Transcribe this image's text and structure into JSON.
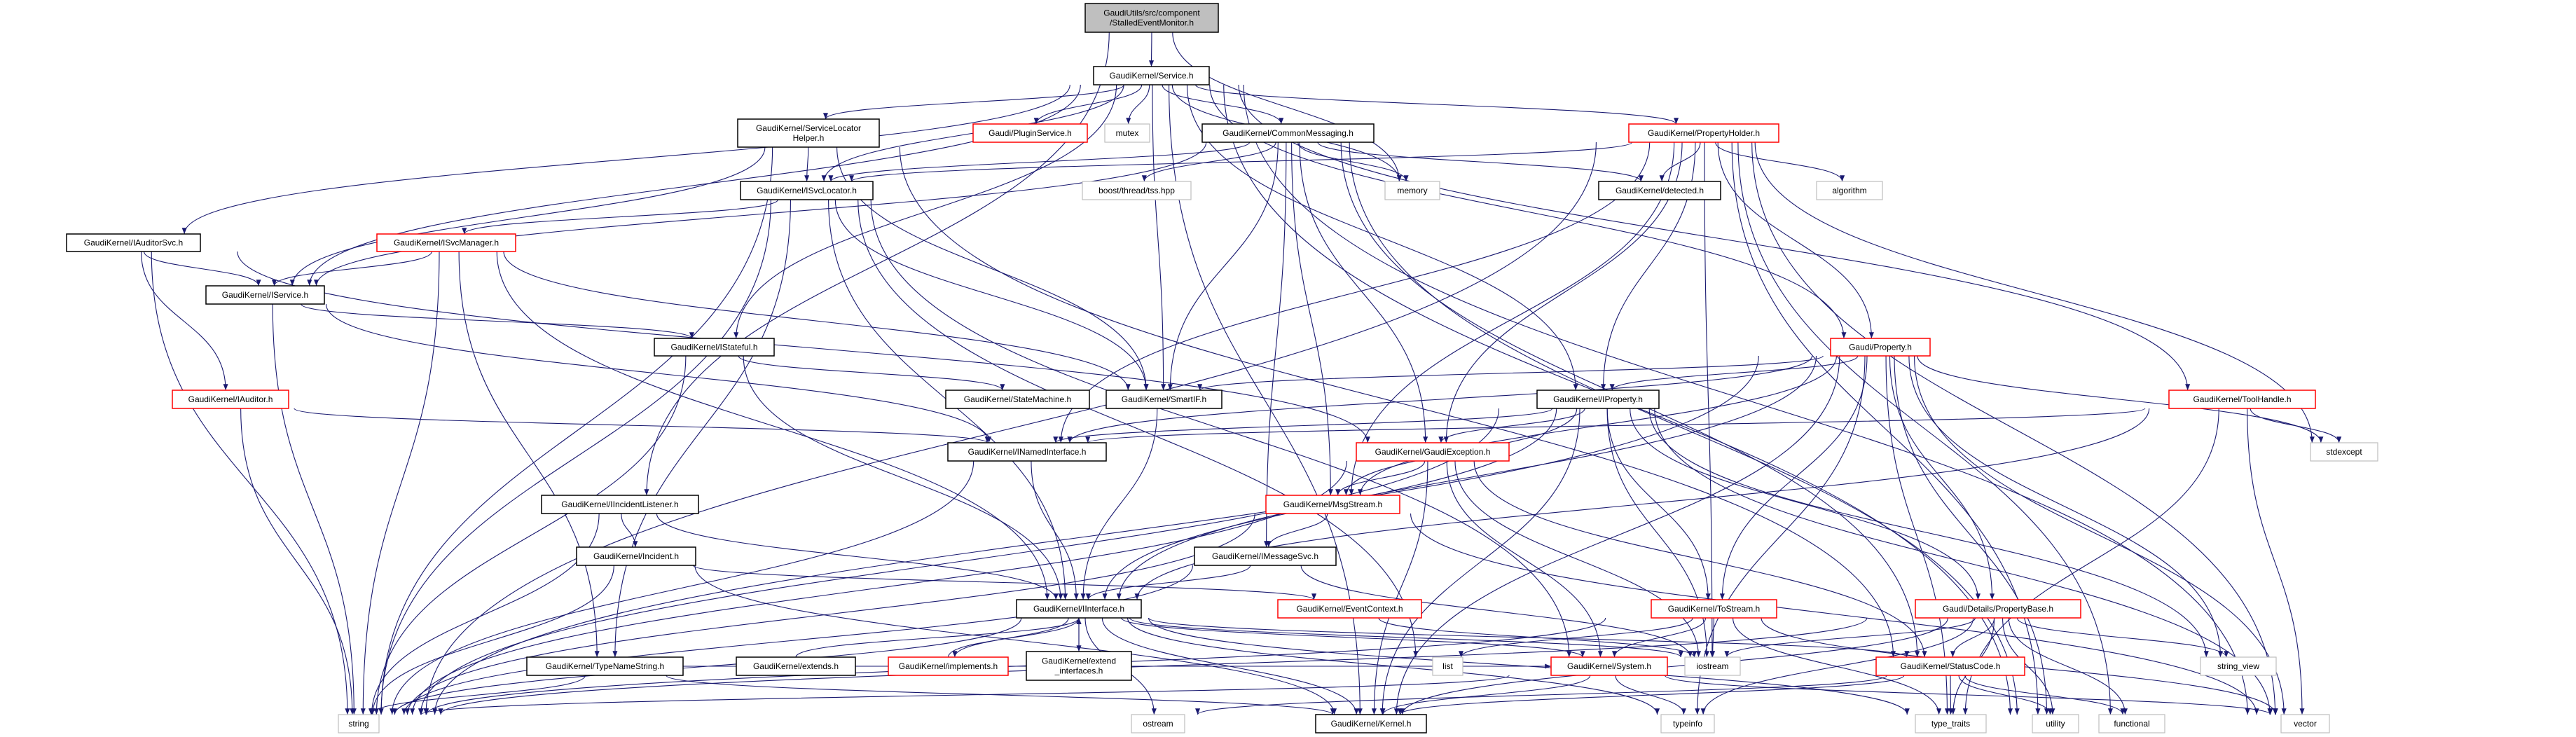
{
  "colors": {
    "edge": "#191970",
    "documented_border": "#000000",
    "truncated_border": "#ff0000",
    "system_border": "#bfbfbf",
    "root_fill": "#bfbfbf"
  },
  "nodes": {
    "root": {
      "lines": [
        "GaudiUtils/src/component",
        "/StalledEventMonitor.h"
      ],
      "kind": "root"
    },
    "service": {
      "lines": [
        "GaudiKernel/Service.h"
      ],
      "kind": "documented"
    },
    "pluginservice": {
      "lines": [
        "Gaudi/PluginService.h"
      ],
      "kind": "truncated"
    },
    "mutex": {
      "lines": [
        "mutex"
      ],
      "kind": "system"
    },
    "commonmessaging": {
      "lines": [
        "GaudiKernel/CommonMessaging.h"
      ],
      "kind": "documented"
    },
    "propertyholder": {
      "lines": [
        "GaudiKernel/PropertyHolder.h"
      ],
      "kind": "truncated"
    },
    "servicelocatorhelper": {
      "lines": [
        "GaudiKernel/ServiceLocator",
        "Helper.h"
      ],
      "kind": "documented"
    },
    "isvclocator": {
      "lines": [
        "GaudiKernel/ISvcLocator.h"
      ],
      "kind": "documented"
    },
    "tss": {
      "lines": [
        "boost/thread/tss.hpp"
      ],
      "kind": "system"
    },
    "memory": {
      "lines": [
        "memory"
      ],
      "kind": "system"
    },
    "detected": {
      "lines": [
        "GaudiKernel/detected.h"
      ],
      "kind": "documented"
    },
    "algorithm": {
      "lines": [
        "algorithm"
      ],
      "kind": "system"
    },
    "iauditorsvc": {
      "lines": [
        "GaudiKernel/IAuditorSvc.h"
      ],
      "kind": "documented"
    },
    "isvcmanager": {
      "lines": [
        "GaudiKernel/ISvcManager.h"
      ],
      "kind": "truncated"
    },
    "iservice": {
      "lines": [
        "GaudiKernel/IService.h"
      ],
      "kind": "documented"
    },
    "istateful": {
      "lines": [
        "GaudiKernel/IStateful.h"
      ],
      "kind": "documented"
    },
    "property": {
      "lines": [
        "Gaudi/Property.h"
      ],
      "kind": "truncated"
    },
    "iauditor": {
      "lines": [
        "GaudiKernel/IAuditor.h"
      ],
      "kind": "truncated"
    },
    "statemachine": {
      "lines": [
        "GaudiKernel/StateMachine.h"
      ],
      "kind": "documented"
    },
    "smartif": {
      "lines": [
        "GaudiKernel/SmartIF.h"
      ],
      "kind": "documented"
    },
    "iproperty": {
      "lines": [
        "GaudiKernel/IProperty.h"
      ],
      "kind": "documented"
    },
    "toolhandle": {
      "lines": [
        "GaudiKernel/ToolHandle.h"
      ],
      "kind": "truncated"
    },
    "inamedinterface": {
      "lines": [
        "GaudiKernel/INamedInterface.h"
      ],
      "kind": "documented"
    },
    "gaudiexception": {
      "lines": [
        "GaudiKernel/GaudiException.h"
      ],
      "kind": "truncated"
    },
    "stdexcept": {
      "lines": [
        "stdexcept"
      ],
      "kind": "system"
    },
    "iincidentlistener": {
      "lines": [
        "GaudiKernel/IIncidentListener.h"
      ],
      "kind": "documented"
    },
    "msgstream": {
      "lines": [
        "GaudiKernel/MsgStream.h"
      ],
      "kind": "truncated"
    },
    "incident": {
      "lines": [
        "GaudiKernel/Incident.h"
      ],
      "kind": "documented"
    },
    "imessagesvc": {
      "lines": [
        "GaudiKernel/IMessageSvc.h"
      ],
      "kind": "documented"
    },
    "iinterface": {
      "lines": [
        "GaudiKernel/IInterface.h"
      ],
      "kind": "documented"
    },
    "eventcontext": {
      "lines": [
        "GaudiKernel/EventContext.h"
      ],
      "kind": "truncated"
    },
    "tostream": {
      "lines": [
        "GaudiKernel/ToStream.h"
      ],
      "kind": "truncated"
    },
    "propertybase": {
      "lines": [
        "Gaudi/Details/PropertyBase.h"
      ],
      "kind": "truncated"
    },
    "typenamestring": {
      "lines": [
        "GaudiKernel/TypeNameString.h"
      ],
      "kind": "documented"
    },
    "extends": {
      "lines": [
        "GaudiKernel/extends.h"
      ],
      "kind": "documented"
    },
    "implements": {
      "lines": [
        "GaudiKernel/implements.h"
      ],
      "kind": "truncated"
    },
    "extend_interfaces": {
      "lines": [
        "GaudiKernel/extend",
        "_interfaces.h"
      ],
      "kind": "documented"
    },
    "list": {
      "lines": [
        "list"
      ],
      "kind": "system"
    },
    "system": {
      "lines": [
        "GaudiKernel/System.h"
      ],
      "kind": "truncated"
    },
    "iostream": {
      "lines": [
        "iostream"
      ],
      "kind": "system"
    },
    "statuscode": {
      "lines": [
        "GaudiKernel/StatusCode.h"
      ],
      "kind": "truncated"
    },
    "string_view": {
      "lines": [
        "string_view"
      ],
      "kind": "system"
    },
    "string": {
      "lines": [
        "string"
      ],
      "kind": "system"
    },
    "ostream": {
      "lines": [
        "ostream"
      ],
      "kind": "system"
    },
    "kernel": {
      "lines": [
        "GaudiKernel/Kernel.h"
      ],
      "kind": "documented"
    },
    "typeinfo": {
      "lines": [
        "typeinfo"
      ],
      "kind": "system"
    },
    "type_traits": {
      "lines": [
        "type_traits"
      ],
      "kind": "system"
    },
    "utility": {
      "lines": [
        "utility"
      ],
      "kind": "system"
    },
    "functional": {
      "lines": [
        "functional"
      ],
      "kind": "system"
    },
    "vector": {
      "lines": [
        "vector"
      ],
      "kind": "system"
    }
  },
  "edges": [
    [
      "root",
      "service"
    ],
    [
      "root",
      "iincidentlistener"
    ],
    [
      "root",
      "memory"
    ],
    [
      "service",
      "servicelocatorhelper"
    ],
    [
      "service",
      "pluginservice"
    ],
    [
      "service",
      "mutex"
    ],
    [
      "service",
      "commonmessaging"
    ],
    [
      "service",
      "propertyholder"
    ],
    [
      "service",
      "iauditorsvc"
    ],
    [
      "service",
      "iservice"
    ],
    [
      "service",
      "isvclocator"
    ],
    [
      "service",
      "istateful"
    ],
    [
      "service",
      "smartif"
    ],
    [
      "service",
      "iproperty"
    ],
    [
      "service",
      "property"
    ],
    [
      "service",
      "toolhandle"
    ],
    [
      "service",
      "memory"
    ],
    [
      "service",
      "vector"
    ],
    [
      "service",
      "utility"
    ],
    [
      "service",
      "kernel"
    ],
    [
      "servicelocatorhelper",
      "isvclocator"
    ],
    [
      "servicelocatorhelper",
      "iservice"
    ],
    [
      "servicelocatorhelper",
      "smartif"
    ],
    [
      "servicelocatorhelper",
      "string"
    ],
    [
      "servicelocatorhelper",
      "statuscode"
    ],
    [
      "commonmessaging",
      "isvclocator"
    ],
    [
      "commonmessaging",
      "iservice"
    ],
    [
      "commonmessaging",
      "imessagesvc"
    ],
    [
      "commonmessaging",
      "msgstream"
    ],
    [
      "commonmessaging",
      "gaudiexception"
    ],
    [
      "commonmessaging",
      "smartif"
    ],
    [
      "commonmessaging",
      "detected"
    ],
    [
      "commonmessaging",
      "tss"
    ],
    [
      "commonmessaging",
      "memory"
    ],
    [
      "commonmessaging",
      "utility"
    ],
    [
      "commonmessaging",
      "statuscode"
    ],
    [
      "propertyholder",
      "iproperty"
    ],
    [
      "propertyholder",
      "property"
    ],
    [
      "propertyholder",
      "detected"
    ],
    [
      "propertyholder",
      "algorithm"
    ],
    [
      "propertyholder",
      "stdexcept"
    ],
    [
      "propertyholder",
      "utility"
    ],
    [
      "propertyholder",
      "vector"
    ],
    [
      "propertyholder",
      "string"
    ],
    [
      "propertyholder",
      "iostream"
    ],
    [
      "propertyholder",
      "gaudiexception"
    ],
    [
      "propertyholder",
      "msgstream"
    ],
    [
      "propertyholder",
      "inamedinterface"
    ],
    [
      "propertyholder",
      "isvclocator"
    ],
    [
      "propertyholder",
      "functional"
    ],
    [
      "isvclocator",
      "isvcmanager"
    ],
    [
      "isvclocator",
      "iinterface"
    ],
    [
      "isvclocator",
      "smartif"
    ],
    [
      "isvclocator",
      "typenamestring"
    ],
    [
      "isvclocator",
      "system"
    ],
    [
      "isvclocator",
      "list"
    ],
    [
      "isvclocator",
      "string"
    ],
    [
      "isvcmanager",
      "iservice"
    ],
    [
      "isvcmanager",
      "iinterface"
    ],
    [
      "isvcmanager",
      "smartif"
    ],
    [
      "isvcmanager",
      "string"
    ],
    [
      "isvcmanager",
      "typenamestring"
    ],
    [
      "iauditorsvc",
      "iservice"
    ],
    [
      "iauditorsvc",
      "iauditor"
    ],
    [
      "iauditorsvc",
      "string"
    ],
    [
      "iauditorsvc",
      "gaudiexception"
    ],
    [
      "iservice",
      "inamedinterface"
    ],
    [
      "iservice",
      "istateful"
    ],
    [
      "iservice",
      "string"
    ],
    [
      "istateful",
      "iinterface"
    ],
    [
      "istateful",
      "statemachine"
    ],
    [
      "istateful",
      "string"
    ],
    [
      "iauditor",
      "inamedinterface"
    ],
    [
      "iauditor",
      "string"
    ],
    [
      "smartif",
      "iinterface"
    ],
    [
      "inamedinterface",
      "iinterface"
    ],
    [
      "inamedinterface",
      "string"
    ],
    [
      "iproperty",
      "inamedinterface"
    ],
    [
      "iproperty",
      "gaudiexception"
    ],
    [
      "iproperty",
      "msgstream"
    ],
    [
      "iproperty",
      "tostream"
    ],
    [
      "iproperty",
      "propertybase"
    ],
    [
      "iproperty",
      "iinterface"
    ],
    [
      "iproperty",
      "string"
    ],
    [
      "iproperty",
      "string_view"
    ],
    [
      "iproperty",
      "iostream"
    ],
    [
      "iproperty",
      "vector"
    ],
    [
      "iproperty",
      "kernel"
    ],
    [
      "property",
      "smartif"
    ],
    [
      "property",
      "iproperty"
    ],
    [
      "property",
      "propertybase"
    ],
    [
      "property",
      "tostream"
    ],
    [
      "property",
      "string_view"
    ],
    [
      "property",
      "stdexcept"
    ],
    [
      "property",
      "type_traits"
    ],
    [
      "property",
      "utility"
    ],
    [
      "property",
      "vector"
    ],
    [
      "property",
      "kernel"
    ],
    [
      "property",
      "typeinfo"
    ],
    [
      "property",
      "string"
    ],
    [
      "property",
      "iinterface"
    ],
    [
      "property",
      "inamedinterface"
    ],
    [
      "property",
      "msgstream"
    ],
    [
      "toolhandle",
      "stdexcept"
    ],
    [
      "toolhandle",
      "iinterface"
    ],
    [
      "toolhandle",
      "type_traits"
    ],
    [
      "toolhandle",
      "vector"
    ],
    [
      "toolhandle",
      "inamedinterface"
    ],
    [
      "gaudiexception",
      "msgstream"
    ],
    [
      "gaudiexception",
      "statuscode"
    ],
    [
      "gaudiexception",
      "kernel"
    ],
    [
      "gaudiexception",
      "iostream"
    ],
    [
      "gaudiexception",
      "string"
    ],
    [
      "gaudiexception",
      "system"
    ],
    [
      "msgstream",
      "imessagesvc"
    ],
    [
      "msgstream",
      "vector"
    ],
    [
      "msgstream",
      "string"
    ],
    [
      "imessagesvc",
      "iinterface"
    ],
    [
      "imessagesvc",
      "string"
    ],
    [
      "imessagesvc",
      "iostream"
    ],
    [
      "iincidentlistener",
      "iinterface"
    ],
    [
      "iincidentlistener",
      "incident"
    ],
    [
      "iincidentlistener",
      "string"
    ],
    [
      "incident",
      "eventcontext"
    ],
    [
      "incident",
      "string"
    ],
    [
      "incident",
      "kernel"
    ],
    [
      "iinterface",
      "system"
    ],
    [
      "iinterface",
      "kernel"
    ],
    [
      "iinterface",
      "ostream"
    ],
    [
      "iinterface",
      "statuscode"
    ],
    [
      "iinterface",
      "typeinfo"
    ],
    [
      "iinterface",
      "type_traits"
    ],
    [
      "iinterface",
      "string"
    ],
    [
      "iinterface",
      "iostream"
    ],
    [
      "iinterface",
      "extend_interfaces"
    ],
    [
      "iinterface",
      "implements"
    ],
    [
      "extends",
      "iinterface"
    ],
    [
      "implements",
      "iinterface"
    ],
    [
      "extend_interfaces",
      "iinterface"
    ],
    [
      "typenamestring",
      "string"
    ],
    [
      "typenamestring",
      "kernel"
    ],
    [
      "typenamestring",
      "system"
    ],
    [
      "eventcontext",
      "iostream"
    ],
    [
      "tostream",
      "list"
    ],
    [
      "tostream",
      "string"
    ],
    [
      "tostream",
      "iostream"
    ],
    [
      "tostream",
      "type_traits"
    ],
    [
      "tostream",
      "vector"
    ],
    [
      "tostream",
      "system"
    ],
    [
      "propertybase",
      "statuscode"
    ],
    [
      "propertybase",
      "string_view"
    ],
    [
      "propertybase",
      "type_traits"
    ],
    [
      "propertybase",
      "utility"
    ],
    [
      "propertybase",
      "functional"
    ],
    [
      "propertybase",
      "iostream"
    ],
    [
      "propertybase",
      "typeinfo"
    ],
    [
      "propertybase",
      "string"
    ],
    [
      "propertybase",
      "kernel"
    ],
    [
      "system",
      "kernel"
    ],
    [
      "system",
      "typeinfo"
    ],
    [
      "system",
      "string"
    ],
    [
      "system",
      "vector"
    ],
    [
      "statuscode",
      "type_traits"
    ],
    [
      "statuscode",
      "utility"
    ],
    [
      "statuscode",
      "functional"
    ],
    [
      "statuscode",
      "ostream"
    ],
    [
      "statuscode",
      "kernel"
    ]
  ]
}
